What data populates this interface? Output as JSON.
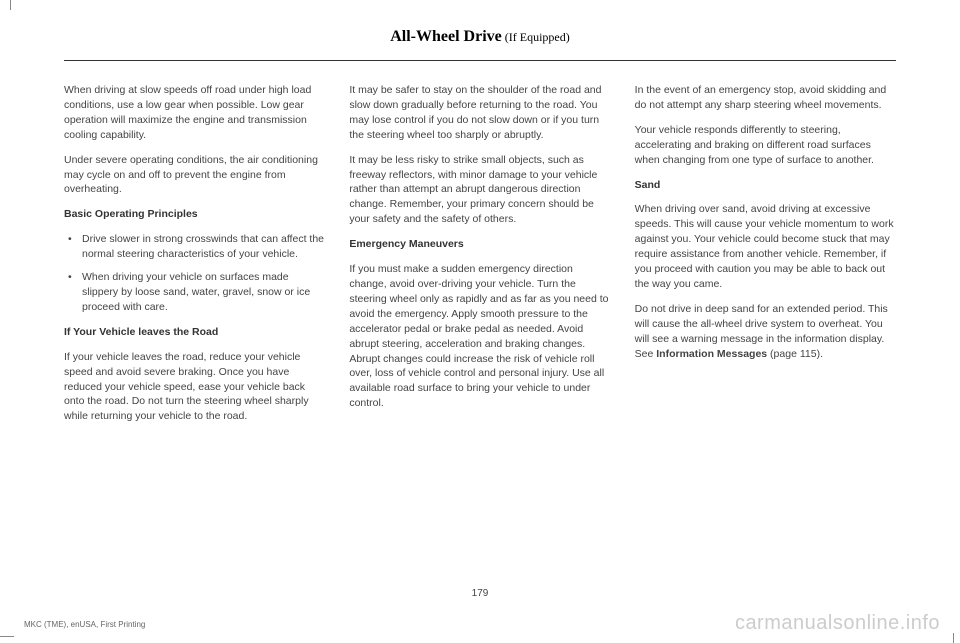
{
  "header": {
    "title": "All-Wheel Drive",
    "subtitle": " (If Equipped)"
  },
  "columns": {
    "col1": {
      "p1": "When driving at slow speeds off road under high load conditions, use a low gear when possible. Low gear operation will maximize the engine and transmission cooling capability.",
      "p2": "Under severe operating conditions, the air conditioning may cycle on and off to prevent the engine from overheating.",
      "h1": "Basic Operating Principles",
      "li1": "Drive slower in strong crosswinds that can affect the normal steering characteristics of your vehicle.",
      "li2": "When driving your vehicle on surfaces made slippery by loose sand, water, gravel, snow or ice proceed with care.",
      "h2": "If Your Vehicle leaves the Road",
      "p3": "If your vehicle leaves the road, reduce your vehicle speed and avoid severe braking. Once you have reduced your vehicle speed, ease your vehicle back onto the road. Do not turn the steering wheel sharply while returning your vehicle to the road."
    },
    "col2": {
      "p1": "It may be safer to stay on the shoulder of the road and slow down gradually before returning to the road. You may lose control if you do not slow down or if you turn the steering wheel too sharply or abruptly.",
      "p2": "It may be less risky to strike small objects, such as freeway reflectors, with minor damage to your vehicle rather than attempt an abrupt dangerous direction change. Remember, your primary concern should be your safety and the safety of others.",
      "h1": "Emergency Maneuvers",
      "p3": "If you must make a sudden emergency direction change, avoid over-driving your vehicle. Turn the steering wheel only as rapidly and as far as you need to avoid the emergency. Apply smooth pressure to the accelerator pedal or brake pedal as needed. Avoid abrupt steering, acceleration and braking changes. Abrupt changes could increase the risk of vehicle roll over, loss of vehicle control and personal injury. Use all available road surface to bring your vehicle to under control."
    },
    "col3": {
      "p1": "In the event of an emergency stop, avoid skidding and do not attempt any sharp steering wheel movements.",
      "p2": "Your vehicle responds differently to steering, accelerating and braking on different road surfaces when changing from one type of surface to another.",
      "h1": "Sand",
      "p3": "When driving over sand, avoid driving at excessive speeds. This will cause your vehicle momentum to work against you. Your vehicle could become stuck that may require assistance from another vehicle. Remember, if you proceed with caution you may be able to back out the way you came.",
      "p4a": "Do not drive in deep sand for an extended period. This will cause the all-wheel drive system to overheat. You will see a warning message in the information display.  See ",
      "p4b": "Information Messages",
      "p4c": " (page 115)."
    }
  },
  "pageNumber": "179",
  "footerLeft": "MKC (TME), enUSA, First Printing",
  "watermark": "carmanualsonline.info"
}
